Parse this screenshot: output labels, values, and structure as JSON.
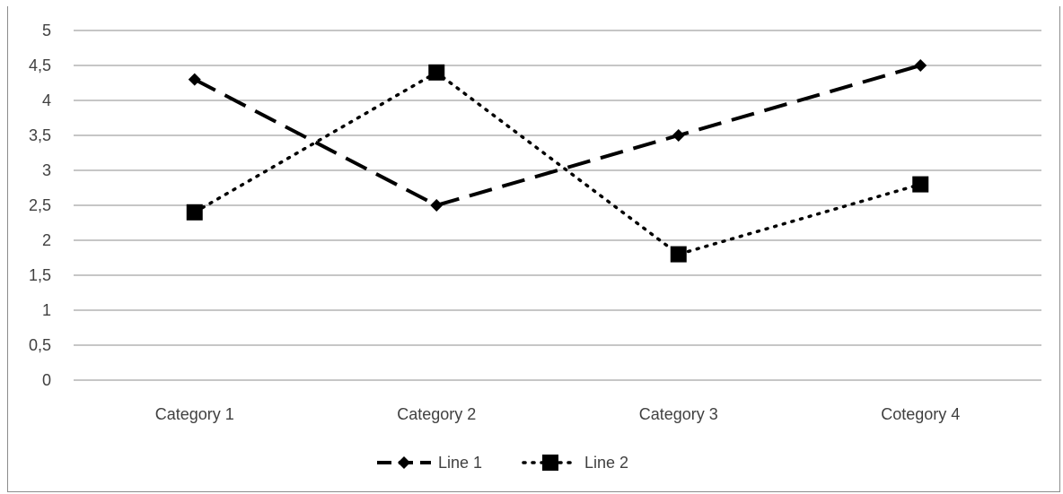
{
  "chart_data": {
    "type": "line",
    "categories": [
      "Category 1",
      "Category 2",
      "Category 3",
      "Cotegory 4"
    ],
    "series": [
      {
        "name": "Line 1",
        "values": [
          4.3,
          2.5,
          3.5,
          4.5
        ],
        "style": "dashed",
        "marker": "diamond",
        "color": "#000000"
      },
      {
        "name": "Line 2",
        "values": [
          2.4,
          4.4,
          1.8,
          2.8
        ],
        "style": "dotted",
        "marker": "square",
        "color": "#000000"
      }
    ],
    "ylim": [
      0,
      5
    ],
    "yticks": [
      "0",
      "0,5",
      "1",
      "1,5",
      "2",
      "2,5",
      "3",
      "3,5",
      "4",
      "4,5",
      "5"
    ],
    "grid": true,
    "legend_position": "bottom"
  }
}
